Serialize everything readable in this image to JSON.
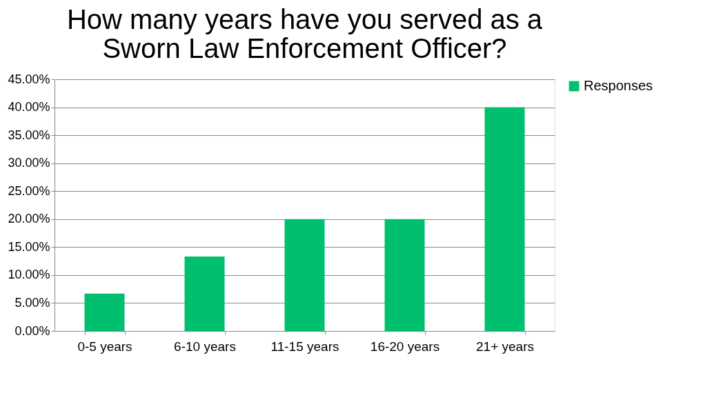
{
  "chart_data": {
    "type": "bar",
    "title": "How many years have you served as a Sworn Law Enforcement Officer?",
    "categories": [
      "0-5 years",
      "6-10 years",
      "11-15 years",
      "16-20 years",
      "21+ years"
    ],
    "series": [
      {
        "name": "Responses",
        "color": "#00c06f",
        "values": [
          6.7,
          13.3,
          20,
          20,
          40
        ]
      }
    ],
    "ylim": [
      0,
      45
    ],
    "yticks": [
      {
        "value": 0,
        "label": "0.00%"
      },
      {
        "value": 5,
        "label": "5.00%"
      },
      {
        "value": 10,
        "label": "10.00%"
      },
      {
        "value": 15,
        "label": "15.00%"
      },
      {
        "value": 20,
        "label": "20.00%"
      },
      {
        "value": 25,
        "label": "25.00%"
      },
      {
        "value": 30,
        "label": "30.00%"
      },
      {
        "value": 35,
        "label": "35.00%"
      },
      {
        "value": 40,
        "label": "40.00%"
      },
      {
        "value": 45,
        "label": "45.00%"
      }
    ],
    "grid": "y",
    "legend": "right"
  }
}
